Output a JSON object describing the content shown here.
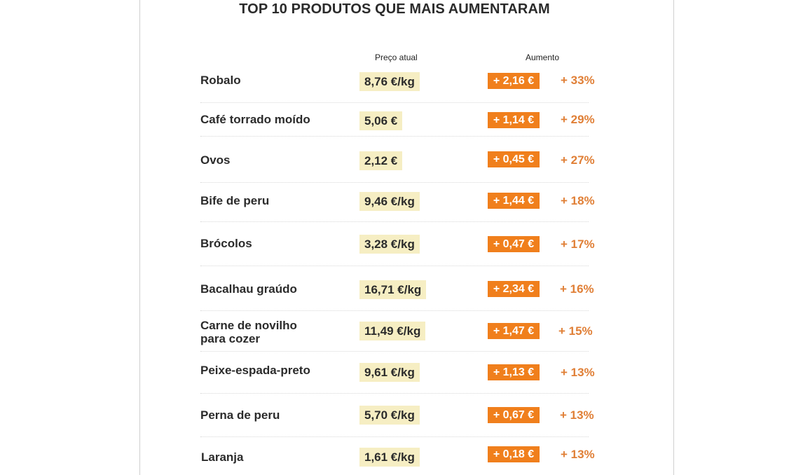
{
  "title": "TOP 10 PRODUTOS QUE MAIS AUMENTARAM",
  "columns": {
    "price": "Preço atual",
    "increase": "Aumento"
  },
  "rows": [
    {
      "name": "Robalo",
      "price": "8,76 €/kg",
      "delta": "+ 2,16 €",
      "pct": "+ 33%"
    },
    {
      "name": "Café torrado moído",
      "price": "5,06 €",
      "delta": "+ 1,14 €",
      "pct": "+ 29%"
    },
    {
      "name": "Ovos",
      "price": "2,12 €",
      "delta": "+ 0,45 €",
      "pct": "+ 27%"
    },
    {
      "name": "Bife de peru",
      "price": "9,46 €/kg",
      "delta": "+ 1,44 €",
      "pct": "+ 18%"
    },
    {
      "name": "Brócolos",
      "price": "3,28 €/kg",
      "delta": "+ 0,47 €",
      "pct": "+ 17%"
    },
    {
      "name": "Bacalhau graúdo",
      "price": "16,71 €/kg",
      "delta": "+ 2,34 €",
      "pct": "+ 16%"
    },
    {
      "name": "Carne de novilho\npara cozer",
      "price": "11,49 €/kg",
      "delta": "+ 1,47 €",
      "pct": "+ 15%"
    },
    {
      "name": "Peixe-espada-preto",
      "price": "9,61 €/kg",
      "delta": "+ 1,13 €",
      "pct": "+ 13%"
    },
    {
      "name": "Perna de peru",
      "price": "5,70 €/kg",
      "delta": "+ 0,67 €",
      "pct": "+ 13%"
    },
    {
      "name": "Laranja",
      "price": "1,61 €/kg",
      "delta": "+ 0,18 €",
      "pct": "+ 13%"
    }
  ],
  "colors": {
    "price_highlight": "#f6eec3",
    "increase_badge": "#f07f1c",
    "percent_text": "#e07f36"
  }
}
